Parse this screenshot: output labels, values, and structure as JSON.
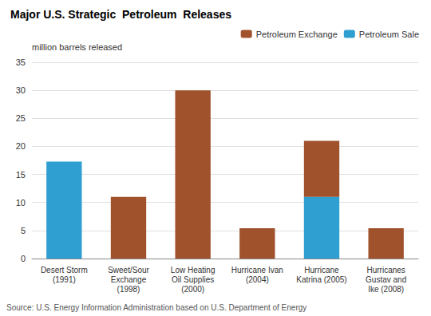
{
  "chart_data": {
    "type": "bar",
    "title": "Major U.S. Strategic  Petroleum  Releases",
    "ylabel": "million barrels released",
    "annotations": [
      "Source: U.S. Energy Information Administration based on U.S. Department of Energy"
    ],
    "categories": [
      "Desert Storm\n(1991)",
      "Sweet/Sour\nExchange\n(1998)",
      "Low Heating\nOil Supplies\n(2000)",
      "Hurricane Ivan\n(2004)",
      "Hurricane\nKatrina (2005)",
      "Hurricanes\nGustav and\nIke (2008)"
    ],
    "series": [
      {
        "name": "Petroleum Sale",
        "color": "#2F9FD2",
        "values": [
          17.3,
          0,
          0,
          0,
          11.0,
          0
        ]
      },
      {
        "name": "Petroleum Exchange",
        "color": "#A0522D",
        "values": [
          0,
          11.0,
          30.0,
          5.4,
          10.0,
          5.4
        ]
      }
    ],
    "stacked": true,
    "ylim": [
      0,
      35
    ],
    "yticks": [
      0,
      5,
      10,
      15,
      20,
      25,
      30,
      35
    ],
    "grid": true,
    "legend": "upper right"
  }
}
